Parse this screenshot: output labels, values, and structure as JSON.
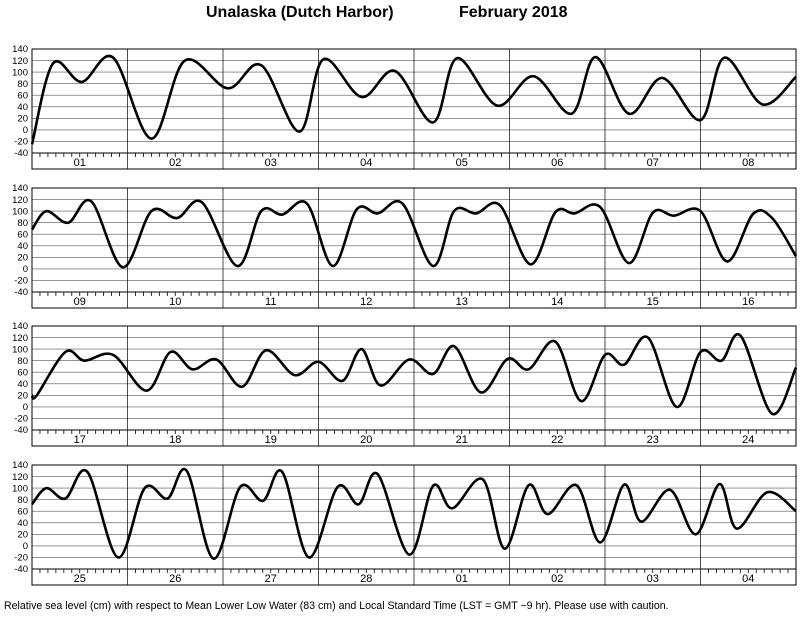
{
  "title": {
    "location": "Unalaska (Dutch Harbor)",
    "period": "February   2018"
  },
  "footnote": "Relative sea level (cm) with respect to Mean Lower Low Water (83 cm) and Local Standard Time (LST = GMT −9 hr). Please use with caution.",
  "chart_data": {
    "type": "line",
    "title": "Unalaska (Dutch Harbor)   February 2018",
    "ylabel": "",
    "xlabel": "",
    "ylim": [
      -40,
      140
    ],
    "yticks": [
      -40,
      -20,
      0,
      20,
      40,
      60,
      80,
      100,
      120,
      140
    ],
    "grid": true,
    "x_unit": "day-hour",
    "panels": [
      {
        "days": [
          "01",
          "02",
          "03",
          "04",
          "05",
          "06",
          "07",
          "08"
        ],
        "series": [
          {
            "x": [
              0,
              0.22,
              0.52,
              0.85,
              1.25,
              1.6,
              2.05,
              2.4,
              2.8,
              3.05,
              3.45,
              3.8,
              4.2,
              4.45,
              4.87,
              5.25,
              5.65,
              5.9,
              6.25,
              6.6,
              7.0,
              7.25,
              7.65,
              8.0
            ],
            "y": [
              -25,
              115,
              83,
              125,
              -15,
              120,
              72,
              112,
              -3,
              122,
              57,
              102,
              13,
              124,
              42,
              93,
              28,
              126,
              28,
              90,
              17,
              125,
              44,
              92
            ]
          }
        ]
      },
      {
        "days": [
          "09",
          "10",
          "11",
          "12",
          "13",
          "14",
          "15",
          "16"
        ],
        "series": [
          {
            "x": [
              0,
              0.15,
              0.38,
              0.62,
              0.95,
              1.25,
              1.52,
              1.78,
              2.15,
              2.4,
              2.62,
              2.88,
              3.15,
              3.4,
              3.62,
              3.88,
              4.2,
              4.42,
              4.65,
              4.9,
              5.22,
              5.48,
              5.68,
              5.95,
              6.25,
              6.5,
              6.72,
              7.0,
              7.28,
              7.55,
              7.75,
              8.0
            ],
            "y": [
              68,
              100,
              80,
              117,
              3,
              100,
              88,
              115,
              5,
              100,
              94,
              113,
              5,
              103,
              96,
              113,
              5,
              100,
              96,
              110,
              8,
              98,
              96,
              107,
              10,
              97,
              92,
              100,
              13,
              95,
              88,
              22
            ]
          }
        ]
      },
      {
        "days": [
          "17",
          "18",
          "19",
          "20",
          "21",
          "22",
          "23",
          "24"
        ],
        "series": [
          {
            "x": [
              0,
              0.05,
              0.35,
              0.55,
              0.85,
              1.2,
              1.45,
              1.68,
              1.93,
              2.2,
              2.45,
              2.75,
              3.0,
              3.25,
              3.45,
              3.65,
              3.95,
              4.2,
              4.42,
              4.7,
              4.98,
              5.2,
              5.48,
              5.75,
              6.0,
              6.2,
              6.45,
              6.75,
              7.0,
              7.22,
              7.42,
              7.75,
              8.0
            ],
            "y": [
              20,
              20,
              95,
              80,
              90,
              28,
              95,
              65,
              82,
              35,
              98,
              55,
              78,
              45,
              100,
              37,
              82,
              57,
              105,
              25,
              83,
              65,
              113,
              10,
              90,
              73,
              120,
              0,
              95,
              80,
              123,
              -12,
              68
            ]
          }
        ]
      },
      {
        "days": [
          "25",
          "26",
          "27",
          "28",
          "01",
          "02",
          "03",
          "04"
        ],
        "series": [
          {
            "x": [
              0,
              0.15,
              0.35,
              0.58,
              0.9,
              1.18,
              1.42,
              1.62,
              1.9,
              2.18,
              2.42,
              2.62,
              2.9,
              3.2,
              3.42,
              3.62,
              3.95,
              4.2,
              4.4,
              4.72,
              4.95,
              5.2,
              5.4,
              5.7,
              5.95,
              6.2,
              6.38,
              6.68,
              6.95,
              7.2,
              7.38,
              7.7,
              8.0
            ],
            "y": [
              72,
              100,
              82,
              128,
              -20,
              100,
              82,
              130,
              -22,
              102,
              78,
              128,
              -20,
              102,
              72,
              124,
              -15,
              104,
              65,
              115,
              -5,
              105,
              55,
              105,
              6,
              106,
              42,
              97,
              20,
              107,
              30,
              93,
              60
            ]
          }
        ]
      }
    ]
  }
}
